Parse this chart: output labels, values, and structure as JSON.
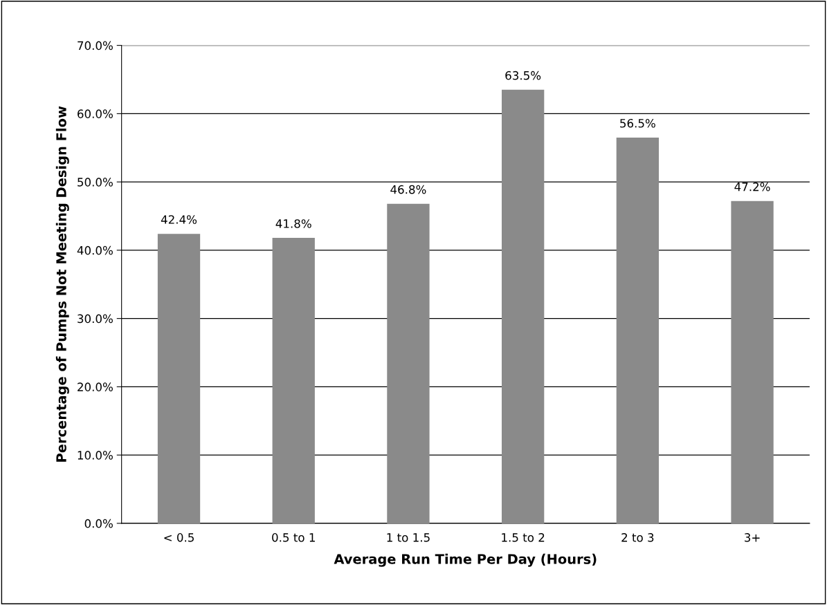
{
  "chart_data": {
    "type": "bar",
    "xlabel": "Average Run Time Per Day (Hours)",
    "ylabel": "Percentage of Pumps Not Meeting Design Flow",
    "categories": [
      "< 0.5",
      "0.5 to 1",
      "1 to 1.5",
      "1.5 to 2",
      "2 to 3",
      "3+"
    ],
    "values": [
      42.4,
      41.8,
      46.8,
      63.5,
      56.5,
      47.2
    ],
    "value_labels": [
      "42.4%",
      "41.8%",
      "46.8%",
      "63.5%",
      "56.5%",
      "47.2%"
    ],
    "color": "#8a8a8a",
    "ylim": [
      0,
      70
    ],
    "yticks": [
      {
        "value": 0,
        "label": "0.0%"
      },
      {
        "value": 10,
        "label": "10.0%"
      },
      {
        "value": 20,
        "label": "20.0%"
      },
      {
        "value": 30,
        "label": "30.0%"
      },
      {
        "value": 40,
        "label": "40.0%"
      },
      {
        "value": 50,
        "label": "50.0%"
      },
      {
        "value": 60,
        "label": "60.0%"
      },
      {
        "value": 70,
        "label": "70.0%"
      }
    ],
    "grid": "y",
    "legend": false
  }
}
